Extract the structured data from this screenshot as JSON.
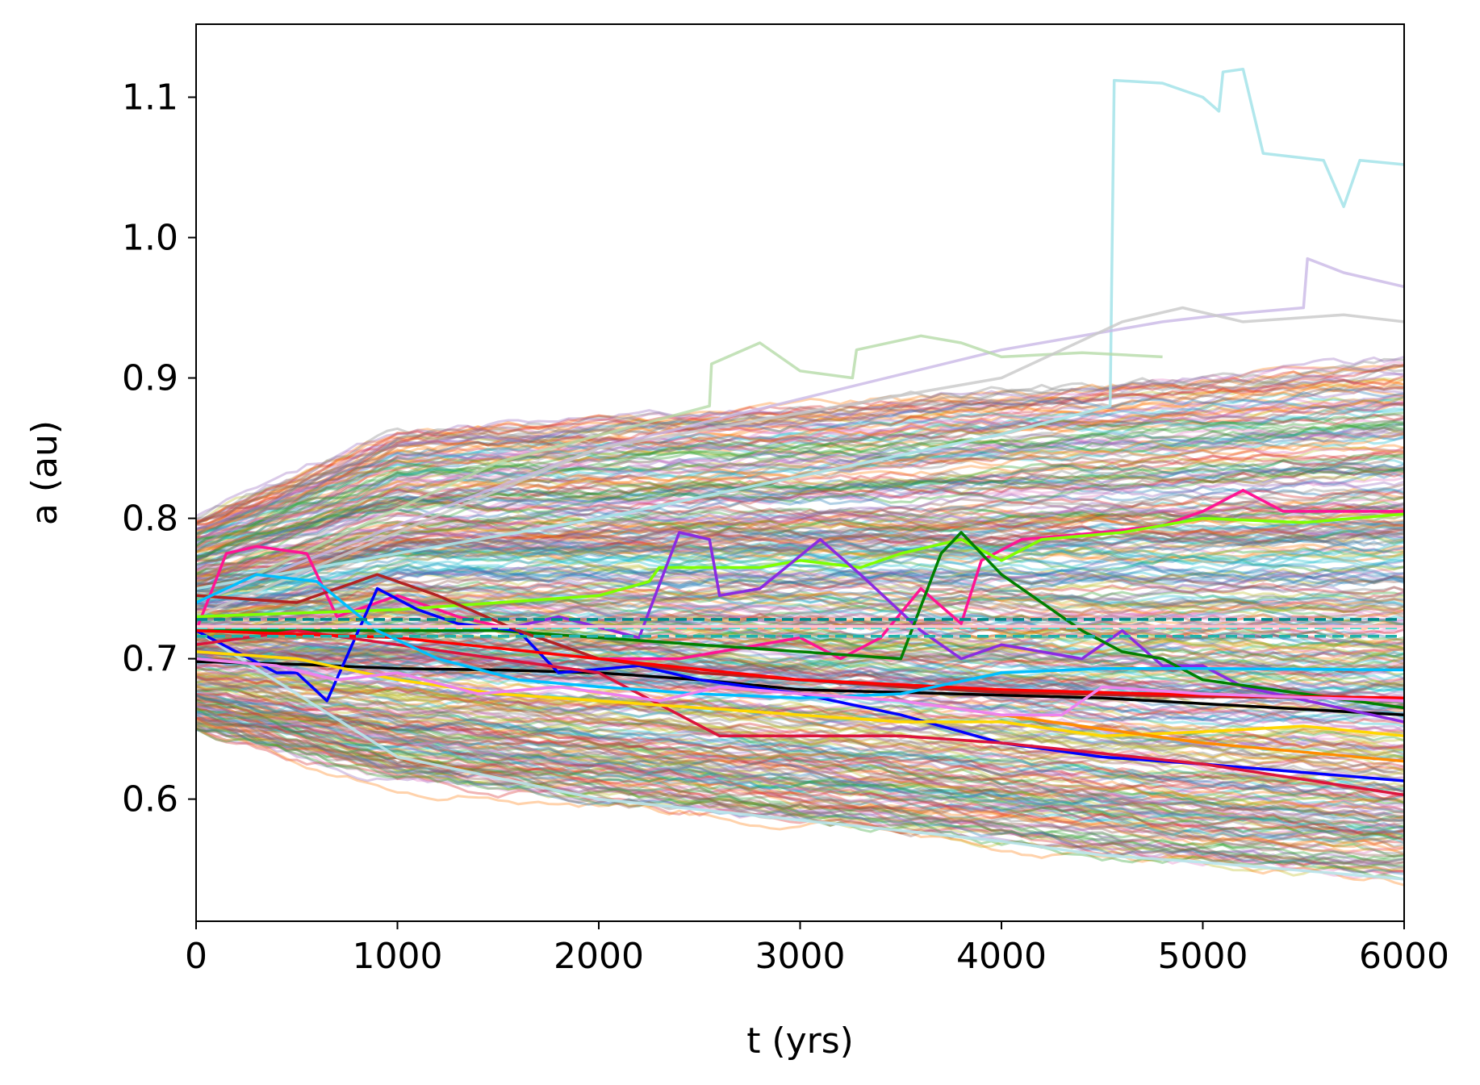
{
  "chart_data": {
    "type": "line",
    "title": "",
    "xlabel": "t (yrs)",
    "ylabel": "a (au)",
    "xlim": [
      0,
      6000
    ],
    "ylim": [
      0.513,
      1.152
    ],
    "x_ticks": [
      0,
      1000,
      2000,
      3000,
      4000,
      5000,
      6000
    ],
    "x_tick_labels": [
      "0",
      "1000",
      "2000",
      "3000",
      "4000",
      "5000",
      "6000"
    ],
    "y_ticks": [
      0.6,
      0.7,
      0.8,
      0.9,
      1.0,
      1.1
    ],
    "y_tick_labels": [
      "0.6",
      "0.7",
      "0.8",
      "0.9",
      "1.0",
      "1.1"
    ],
    "grid": false,
    "legend": "none",
    "background_ensemble": {
      "description_count": 400,
      "start_range": [
        0.66,
        0.8
      ],
      "upper_envelope": [
        [
          0,
          0.8
        ],
        [
          1000,
          0.86
        ],
        [
          2000,
          0.87
        ],
        [
          3000,
          0.88
        ],
        [
          4000,
          0.89
        ],
        [
          5000,
          0.9
        ],
        [
          6000,
          0.91
        ]
      ],
      "lower_envelope": [
        [
          0,
          0.65
        ],
        [
          1000,
          0.615
        ],
        [
          2000,
          0.6
        ],
        [
          3000,
          0.585
        ],
        [
          4000,
          0.57
        ],
        [
          5000,
          0.555
        ],
        [
          6000,
          0.545
        ]
      ],
      "opacity": 0.35,
      "palette": [
        "#1f77b4",
        "#ff7f0e",
        "#2ca02c",
        "#d62728",
        "#9467bd",
        "#8c564b",
        "#e377c2",
        "#7f7f7f",
        "#bcbd22",
        "#17becf"
      ]
    },
    "series": [
      {
        "color": "#b8e6ec",
        "alpha": 0.9,
        "points": [
          [
            0,
            0.72
          ],
          [
            1000,
            0.63
          ],
          [
            2000,
            0.6
          ],
          [
            3000,
            0.585
          ],
          [
            4000,
            0.57
          ],
          [
            4500,
            0.56
          ],
          [
            5000,
            0.555
          ],
          [
            6000,
            0.543
          ]
        ]
      },
      {
        "color": "#a8e4ea",
        "alpha": 0.9,
        "points": [
          [
            0,
            0.75
          ],
          [
            2000,
            0.8
          ],
          [
            4000,
            0.86
          ],
          [
            4540,
            0.88
          ],
          [
            4560,
            1.112
          ],
          [
            4800,
            1.11
          ],
          [
            5000,
            1.1
          ],
          [
            5080,
            1.09
          ],
          [
            5100,
            1.118
          ],
          [
            5200,
            1.12
          ],
          [
            5300,
            1.06
          ],
          [
            5600,
            1.055
          ],
          [
            5700,
            1.022
          ],
          [
            5780,
            1.055
          ],
          [
            6000,
            1.052
          ]
        ]
      },
      {
        "color": "#c9b8e6",
        "alpha": 0.8,
        "points": [
          [
            0,
            0.74
          ],
          [
            2000,
            0.85
          ],
          [
            4000,
            0.92
          ],
          [
            4800,
            0.94
          ],
          [
            5100,
            0.945
          ],
          [
            5500,
            0.95
          ],
          [
            5520,
            0.985
          ],
          [
            5700,
            0.975
          ],
          [
            6000,
            0.965
          ]
        ]
      },
      {
        "color": "#b5dba8",
        "alpha": 0.8,
        "points": [
          [
            0,
            0.74
          ],
          [
            1500,
            0.84
          ],
          [
            2550,
            0.88
          ],
          [
            2560,
            0.91
          ],
          [
            2800,
            0.925
          ],
          [
            3000,
            0.905
          ],
          [
            3260,
            0.9
          ],
          [
            3280,
            0.92
          ],
          [
            3600,
            0.93
          ],
          [
            3800,
            0.925
          ],
          [
            4000,
            0.915
          ],
          [
            4400,
            0.918
          ],
          [
            4800,
            0.915
          ]
        ]
      },
      {
        "color": "#c8c8c8",
        "alpha": 0.8,
        "points": [
          [
            0,
            0.73
          ],
          [
            2000,
            0.85
          ],
          [
            4000,
            0.9
          ],
          [
            4600,
            0.94
          ],
          [
            4900,
            0.95
          ],
          [
            5200,
            0.94
          ],
          [
            5700,
            0.945
          ],
          [
            6000,
            0.94
          ]
        ]
      },
      {
        "color": "#000000",
        "alpha": 1.0,
        "points": [
          [
            0,
            0.698
          ],
          [
            500,
            0.696
          ],
          [
            1000,
            0.693
          ],
          [
            1500,
            0.692
          ],
          [
            2000,
            0.69
          ],
          [
            2500,
            0.685
          ],
          [
            3000,
            0.678
          ],
          [
            3500,
            0.676
          ],
          [
            4000,
            0.674
          ],
          [
            4500,
            0.672
          ],
          [
            5000,
            0.668
          ],
          [
            5500,
            0.664
          ],
          [
            6000,
            0.66
          ]
        ]
      },
      {
        "color": "#ff1493",
        "alpha": 1.0,
        "points": [
          [
            0,
            0.72
          ],
          [
            150,
            0.775
          ],
          [
            300,
            0.78
          ],
          [
            550,
            0.775
          ],
          [
            700,
            0.73
          ],
          [
            1000,
            0.745
          ],
          [
            1300,
            0.73
          ],
          [
            1600,
            0.72
          ],
          [
            2000,
            0.7
          ],
          [
            2400,
            0.7
          ],
          [
            2800,
            0.71
          ],
          [
            3000,
            0.715
          ],
          [
            3200,
            0.7
          ],
          [
            3400,
            0.715
          ],
          [
            3600,
            0.75
          ],
          [
            3800,
            0.725
          ],
          [
            3900,
            0.77
          ],
          [
            4100,
            0.785
          ],
          [
            4500,
            0.79
          ],
          [
            4800,
            0.795
          ],
          [
            5000,
            0.805
          ],
          [
            5200,
            0.82
          ],
          [
            5400,
            0.805
          ],
          [
            6000,
            0.805
          ]
        ]
      },
      {
        "color": "#7fff00",
        "alpha": 1.0,
        "points": [
          [
            0,
            0.73
          ],
          [
            1000,
            0.735
          ],
          [
            1500,
            0.74
          ],
          [
            2000,
            0.745
          ],
          [
            2250,
            0.755
          ],
          [
            2300,
            0.765
          ],
          [
            2800,
            0.765
          ],
          [
            3000,
            0.77
          ],
          [
            3300,
            0.765
          ],
          [
            3500,
            0.775
          ],
          [
            3800,
            0.785
          ],
          [
            4000,
            0.77
          ],
          [
            4200,
            0.785
          ],
          [
            4600,
            0.79
          ],
          [
            5000,
            0.8
          ],
          [
            5500,
            0.797
          ],
          [
            6000,
            0.803
          ]
        ]
      },
      {
        "color": "#8a2be2",
        "alpha": 1.0,
        "points": [
          [
            0,
            0.72
          ],
          [
            500,
            0.72
          ],
          [
            1000,
            0.72
          ],
          [
            1500,
            0.72
          ],
          [
            1800,
            0.73
          ],
          [
            2200,
            0.715
          ],
          [
            2400,
            0.79
          ],
          [
            2550,
            0.785
          ],
          [
            2600,
            0.745
          ],
          [
            2800,
            0.75
          ],
          [
            3100,
            0.785
          ],
          [
            3300,
            0.76
          ],
          [
            3600,
            0.72
          ],
          [
            3800,
            0.7
          ],
          [
            4000,
            0.71
          ],
          [
            4400,
            0.7
          ],
          [
            4600,
            0.72
          ],
          [
            4800,
            0.695
          ],
          [
            5000,
            0.695
          ],
          [
            5200,
            0.68
          ],
          [
            6000,
            0.655
          ]
        ]
      },
      {
        "color": "#008000",
        "alpha": 1.0,
        "points": [
          [
            0,
            0.72
          ],
          [
            1500,
            0.72
          ],
          [
            2500,
            0.71
          ],
          [
            3500,
            0.7
          ],
          [
            3700,
            0.775
          ],
          [
            3800,
            0.79
          ],
          [
            4000,
            0.76
          ],
          [
            4200,
            0.74
          ],
          [
            4400,
            0.72
          ],
          [
            4600,
            0.705
          ],
          [
            4800,
            0.7
          ],
          [
            5000,
            0.685
          ],
          [
            5500,
            0.675
          ],
          [
            6000,
            0.665
          ]
        ]
      },
      {
        "color": "#0000ff",
        "alpha": 1.0,
        "points": [
          [
            0,
            0.72
          ],
          [
            400,
            0.69
          ],
          [
            500,
            0.69
          ],
          [
            650,
            0.67
          ],
          [
            900,
            0.75
          ],
          [
            1100,
            0.735
          ],
          [
            1300,
            0.725
          ],
          [
            1600,
            0.72
          ],
          [
            1800,
            0.69
          ],
          [
            2200,
            0.695
          ],
          [
            2500,
            0.685
          ],
          [
            3000,
            0.675
          ],
          [
            3500,
            0.66
          ],
          [
            4000,
            0.64
          ],
          [
            4500,
            0.63
          ],
          [
            5000,
            0.625
          ],
          [
            6000,
            0.613
          ]
        ]
      },
      {
        "color": "#dc143c",
        "alpha": 1.0,
        "points": [
          [
            0,
            0.71
          ],
          [
            500,
            0.72
          ],
          [
            1000,
            0.71
          ],
          [
            1500,
            0.7
          ],
          [
            2000,
            0.69
          ],
          [
            2400,
            0.66
          ],
          [
            2600,
            0.645
          ],
          [
            3000,
            0.645
          ],
          [
            3500,
            0.645
          ],
          [
            4000,
            0.64
          ],
          [
            5000,
            0.625
          ],
          [
            6000,
            0.603
          ]
        ]
      },
      {
        "color": "#b22222",
        "alpha": 1.0,
        "points": [
          [
            0,
            0.745
          ],
          [
            500,
            0.74
          ],
          [
            900,
            0.76
          ],
          [
            1200,
            0.745
          ],
          [
            1600,
            0.72
          ],
          [
            1800,
            0.71
          ],
          [
            2000,
            0.7
          ],
          [
            2500,
            0.69
          ],
          [
            3000,
            0.685
          ],
          [
            3500,
            0.68
          ],
          [
            4000,
            0.676
          ],
          [
            5000,
            0.673
          ],
          [
            6000,
            0.672
          ]
        ]
      },
      {
        "color": "#ffd700",
        "alpha": 1.0,
        "points": [
          [
            0,
            0.705
          ],
          [
            500,
            0.7
          ],
          [
            1000,
            0.685
          ],
          [
            1500,
            0.675
          ],
          [
            2000,
            0.67
          ],
          [
            2500,
            0.665
          ],
          [
            3000,
            0.66
          ],
          [
            3500,
            0.655
          ],
          [
            4000,
            0.655
          ],
          [
            4500,
            0.645
          ],
          [
            5000,
            0.648
          ],
          [
            5500,
            0.652
          ],
          [
            6000,
            0.645
          ]
        ]
      },
      {
        "color": "#ff8c00",
        "alpha": 1.0,
        "points": [
          [
            4000,
            0.66
          ],
          [
            5000,
            0.64
          ],
          [
            6000,
            0.627
          ]
        ]
      },
      {
        "color": "#ff0000",
        "alpha": 1.0,
        "points": [
          [
            0,
            0.72
          ],
          [
            1000,
            0.715
          ],
          [
            2000,
            0.7
          ],
          [
            3000,
            0.685
          ],
          [
            4000,
            0.678
          ],
          [
            5000,
            0.674
          ],
          [
            6000,
            0.672
          ]
        ]
      },
      {
        "color": "#00bfff",
        "alpha": 1.0,
        "points": [
          [
            0,
            0.74
          ],
          [
            300,
            0.76
          ],
          [
            600,
            0.755
          ],
          [
            900,
            0.72
          ],
          [
            1200,
            0.7
          ],
          [
            1600,
            0.685
          ],
          [
            2000,
            0.68
          ],
          [
            2500,
            0.675
          ],
          [
            3000,
            0.672
          ],
          [
            3500,
            0.675
          ],
          [
            4000,
            0.69
          ],
          [
            4500,
            0.693
          ],
          [
            5000,
            0.693
          ],
          [
            6000,
            0.692
          ]
        ]
      },
      {
        "color": "#ee82ee",
        "alpha": 1.0,
        "points": [
          [
            0,
            0.7
          ],
          [
            400,
            0.695
          ],
          [
            700,
            0.685
          ],
          [
            1000,
            0.69
          ],
          [
            1400,
            0.675
          ],
          [
            1800,
            0.68
          ],
          [
            2300,
            0.67
          ],
          [
            2600,
            0.68
          ],
          [
            3000,
            0.675
          ],
          [
            3500,
            0.67
          ],
          [
            4000,
            0.66
          ],
          [
            4300,
            0.66
          ],
          [
            4500,
            0.68
          ],
          [
            5000,
            0.675
          ],
          [
            6000,
            0.67
          ]
        ]
      },
      {
        "color": "#008b8b",
        "alpha": 1.0,
        "dashed": true,
        "points": [
          [
            0,
            0.728
          ],
          [
            6000,
            0.728
          ]
        ]
      },
      {
        "color": "#20b2aa",
        "alpha": 1.0,
        "dashed": true,
        "points": [
          [
            0,
            0.716
          ],
          [
            6000,
            0.716
          ]
        ]
      },
      {
        "color": "#40e0d0",
        "alpha": 1.0,
        "dashed": true,
        "points": [
          [
            0,
            0.722
          ],
          [
            6000,
            0.722
          ]
        ]
      },
      {
        "color": "#ffc0cb",
        "alpha": 1.0,
        "points": [
          [
            0,
            0.723
          ],
          [
            6000,
            0.723
          ]
        ]
      }
    ]
  }
}
